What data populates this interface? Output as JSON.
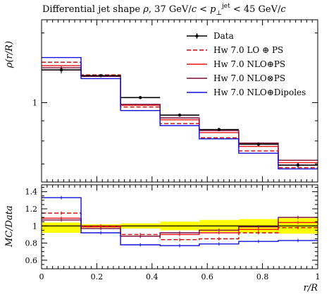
{
  "chart_data": {
    "type": "line",
    "title": "Differential jet shape ρ, 37 GeV/c < p⊥jet < 45 GeV/c",
    "title_parts": {
      "main": "Differential jet shape ",
      "rho": "ρ",
      "range_lo": ", 37 GeV/",
      "c1": "c",
      "lt1": " < ",
      "p": "p",
      "perp": "⊥",
      "jet": "jet",
      "lt2": " < 45 GeV/",
      "c2": "c"
    },
    "xlabel": "r/R",
    "ylabel_top": "ρ(r/R)",
    "ylabel_bottom": "MC/Data",
    "xlim": [
      0,
      1
    ],
    "top_ylim": [
      0.63,
      1.62
    ],
    "top_yscale": "log",
    "top_yticks": [
      {
        "value": 1,
        "label": "1"
      }
    ],
    "bottom_ylim": [
      0.5,
      1.48
    ],
    "bottom_yticks": [
      {
        "value": 0.6,
        "label": "0.6"
      },
      {
        "value": 0.8,
        "label": "0.8"
      },
      {
        "value": 1.0,
        "label": "1"
      },
      {
        "value": 1.2,
        "label": "1.2"
      },
      {
        "value": 1.4,
        "label": "1.4"
      }
    ],
    "xticks": [
      {
        "value": 0,
        "label": "0"
      },
      {
        "value": 0.2,
        "label": "0.2"
      },
      {
        "value": 0.4,
        "label": "0.4"
      },
      {
        "value": 0.6,
        "label": "0.6"
      },
      {
        "value": 0.8,
        "label": "0.8"
      },
      {
        "value": 1.0,
        "label": "1"
      }
    ],
    "bin_edges": [
      0,
      0.143,
      0.286,
      0.429,
      0.571,
      0.714,
      0.857,
      1.0
    ],
    "data": {
      "name": "Data",
      "color": "#000000",
      "values": [
        1.21,
        1.17,
        1.03,
        0.93,
        0.855,
        0.785,
        0.695
      ],
      "errors": [
        0.025,
        0.01,
        0.008,
        0.007,
        0.008,
        0.009,
        0.01
      ]
    },
    "band": {
      "color": "#ffff00",
      "lo": [
        0.92,
        0.98,
        0.97,
        0.95,
        0.93,
        0.92,
        0.91
      ],
      "hi": [
        1.04,
        1.02,
        1.03,
        1.05,
        1.07,
        1.08,
        1.09
      ]
    },
    "series": [
      {
        "name": "Hw 7.0 LO ⊕ PS",
        "legend_parts": [
          "Hw 7.0 LO ",
          "⊕",
          " PS"
        ],
        "color": "#cc0000",
        "dash": "dashed",
        "values": [
          1.265,
          1.175,
          0.975,
          0.885,
          0.815,
          0.755,
          0.685
        ],
        "ratio": [
          1.15,
          1.0,
          0.9,
          0.84,
          0.85,
          0.92,
          0.98
        ]
      },
      {
        "name": "Hw 7.0 NLO ⊕ PS",
        "legend_parts": [
          "Hw 7.0 NLO",
          "⊕",
          "PS"
        ],
        "color": "#ee1111",
        "dash": "solid",
        "values": [
          1.24,
          1.17,
          0.985,
          0.905,
          0.84,
          0.775,
          0.705
        ],
        "ratio": [
          1.09,
          0.99,
          0.88,
          0.9,
          0.92,
          0.96,
          1.04
        ]
      },
      {
        "name": "Hw 7.0 NLO ⊗ PS",
        "legend_parts": [
          "Hw 7.0 NLO",
          "⊗",
          "PS"
        ],
        "color": "#7a0a3a",
        "dash": "solid",
        "values": [
          1.225,
          1.165,
          0.99,
          0.915,
          0.85,
          0.79,
          0.715
        ],
        "ratio": [
          1.07,
          0.97,
          0.88,
          0.92,
          0.95,
          0.99,
          1.1
        ]
      },
      {
        "name": "Hw 7.0 NLO ⊕ Dipoles",
        "legend_parts": [
          "Hw 7.0 NLO",
          "⊕",
          "Dipoles"
        ],
        "color": "#1010dd",
        "dash": "solid",
        "values": [
          1.3,
          1.15,
          0.955,
          0.875,
          0.81,
          0.745,
          0.68
        ],
        "ratio": [
          1.33,
          0.92,
          0.78,
          0.77,
          0.79,
          0.82,
          0.83
        ]
      }
    ]
  }
}
